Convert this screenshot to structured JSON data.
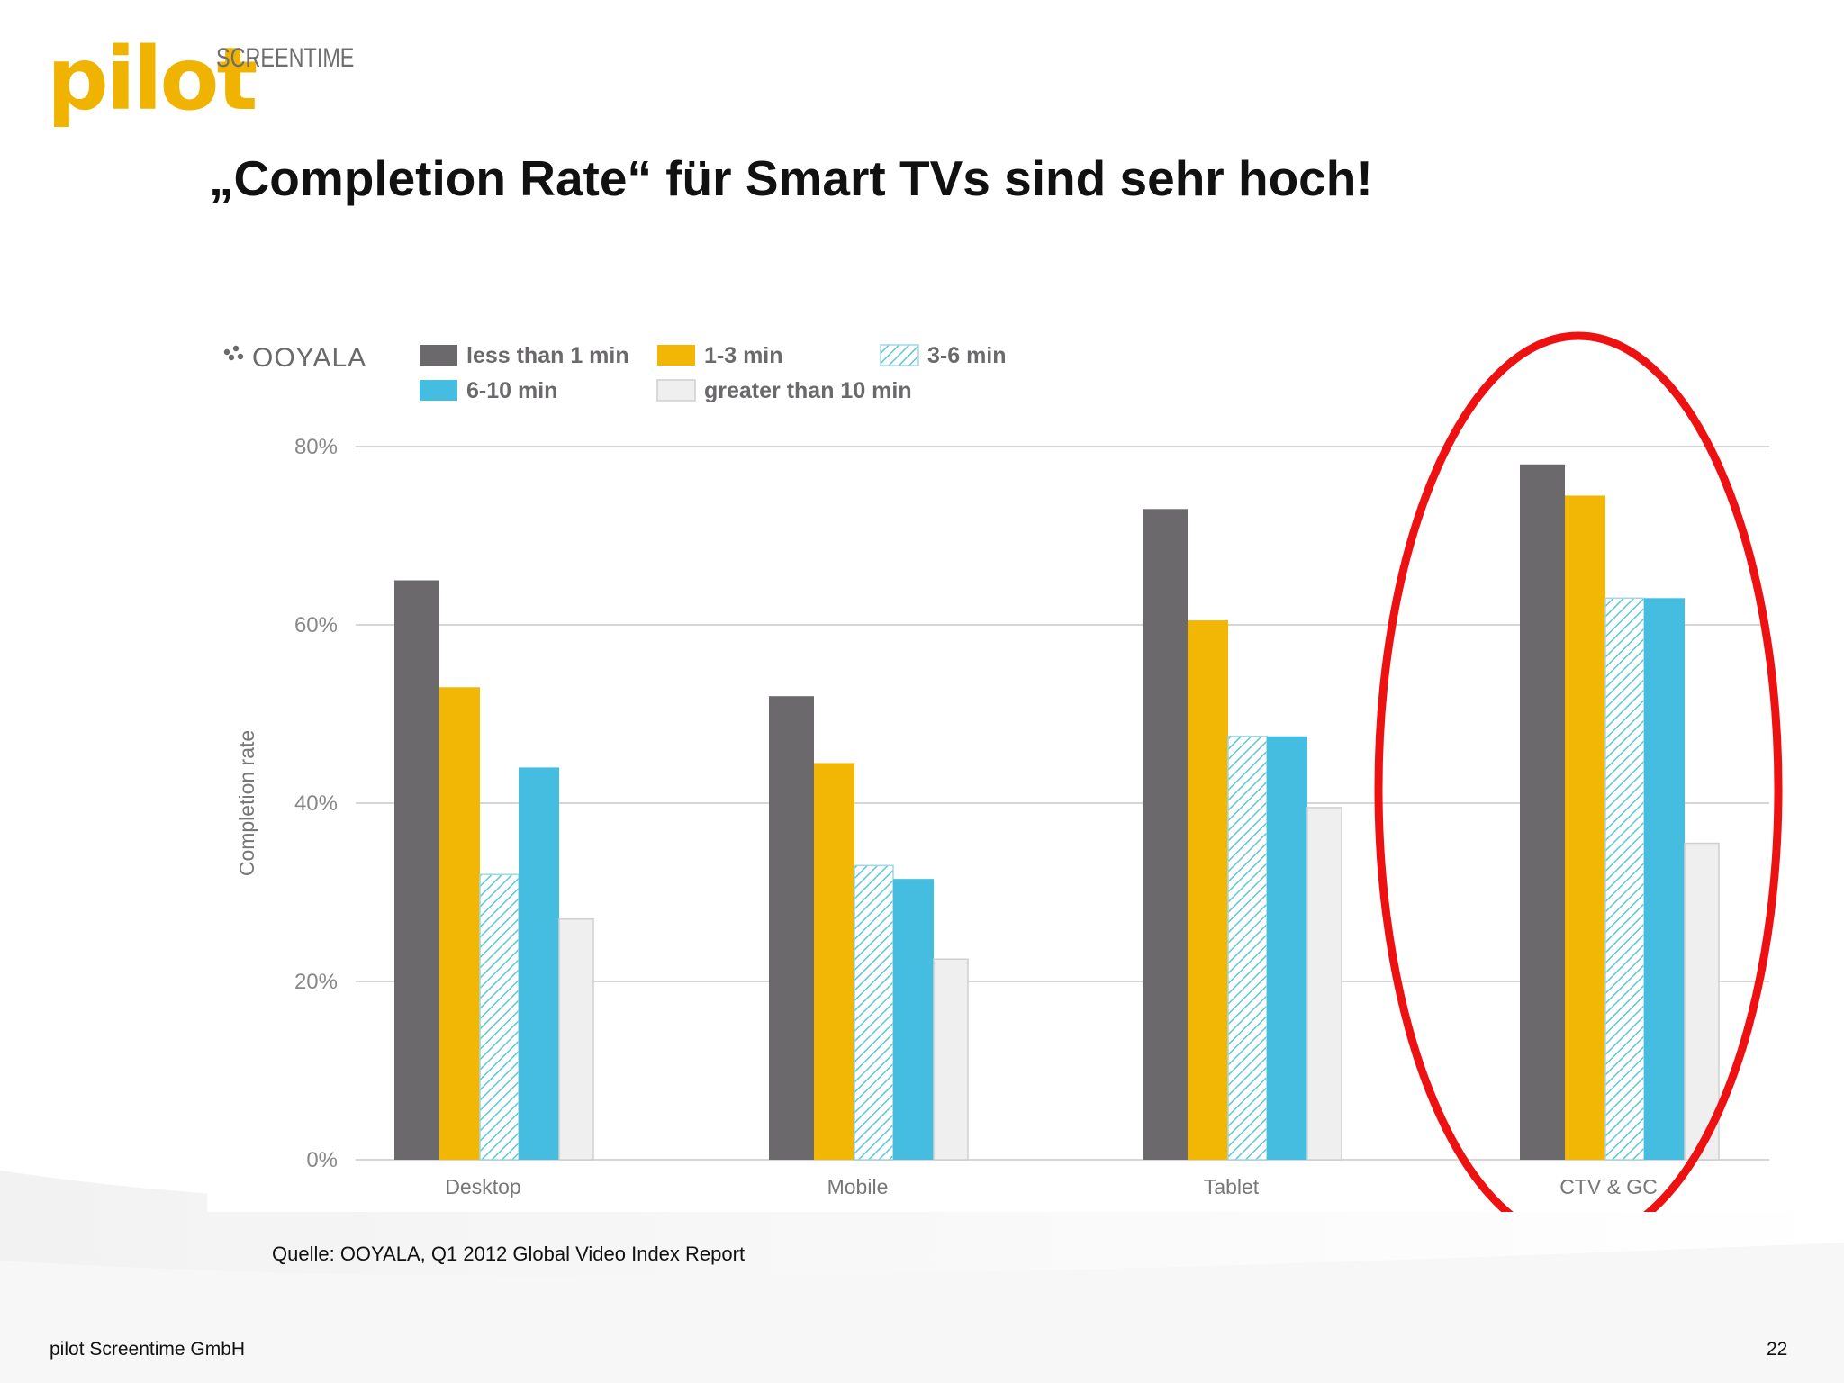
{
  "logo": {
    "word": "pilot",
    "sub": "SCREENTIME"
  },
  "slide": {
    "title": "„Completion Rate“ für Smart TVs sind sehr hoch!",
    "source": "Quelle: OOYALA, Q1 2012 Global Video Index Report",
    "footer_left": "pilot Screentime GmbH",
    "page_number": "22"
  },
  "chart_brand": "OOYALA",
  "colors": {
    "dark": "#6b696c",
    "yellow": "#f2b705",
    "hatch": "#5fc6d6",
    "blue": "#45bde0",
    "light": "#efefef",
    "ellipse": "#ee1111",
    "logo": "#f0b400"
  },
  "chart_data": {
    "type": "bar",
    "ylabel": "Completion rate",
    "ylim": [
      0,
      80
    ],
    "yticks": [
      "0%",
      "20%",
      "40%",
      "60%",
      "80%"
    ],
    "ytick_values": [
      0,
      20,
      40,
      60,
      80
    ],
    "grid": true,
    "legend_position": "top-left",
    "categories": [
      "Desktop",
      "Mobile",
      "Tablet",
      "CTV & GC"
    ],
    "series": [
      {
        "name": "less than 1 min",
        "style": "dark",
        "values": [
          65,
          52,
          73,
          78
        ]
      },
      {
        "name": "1-3 min",
        "style": "yellow",
        "values": [
          53,
          44.5,
          60.5,
          74.5
        ]
      },
      {
        "name": "3-6 min",
        "style": "hatch",
        "values": [
          32,
          33,
          47.5,
          63
        ]
      },
      {
        "name": "6-10 min",
        "style": "blue",
        "values": [
          44,
          31.5,
          47.5,
          63
        ]
      },
      {
        "name": "greater than 10 min",
        "style": "light",
        "values": [
          27,
          22.5,
          39.5,
          35.5
        ]
      }
    ],
    "highlight_category": "CTV & GC"
  }
}
